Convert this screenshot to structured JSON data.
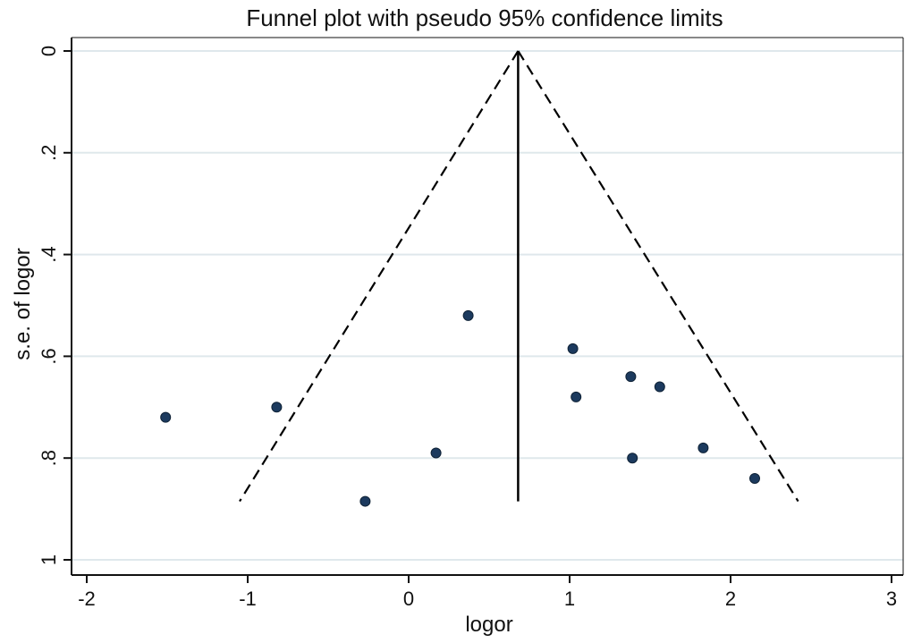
{
  "chart_data": {
    "type": "scatter",
    "title": "Funnel plot with pseudo 95% confidence limits",
    "xlabel": "logor",
    "ylabel": "s.e. of logor",
    "xlim": [
      -2,
      3
    ],
    "ylim": [
      0,
      1
    ],
    "y_reversed": true,
    "grid": true,
    "x_ticks": [
      -2,
      -1,
      0,
      1,
      2,
      3
    ],
    "x_tick_labels": [
      "-2",
      "-1",
      "0",
      "1",
      "2",
      "3"
    ],
    "y_ticks": [
      0,
      0.2,
      0.4,
      0.6,
      0.8,
      1
    ],
    "y_tick_labels": [
      "0",
      ".2",
      ".4",
      ".6",
      ".8",
      "1"
    ],
    "pooled_estimate": 0.68,
    "pooled_line_se_range": [
      0,
      0.885
    ],
    "confidence_limits": {
      "style": "dashed",
      "se_max": 0.885,
      "apex": [
        0.68,
        0
      ],
      "lower_end": [
        -1.05,
        0.885
      ],
      "upper_end": [
        2.42,
        0.885
      ]
    },
    "points": [
      {
        "x": -1.51,
        "y": 0.72
      },
      {
        "x": -0.82,
        "y": 0.7
      },
      {
        "x": 0.37,
        "y": 0.52
      },
      {
        "x": 1.02,
        "y": 0.585
      },
      {
        "x": 1.38,
        "y": 0.64
      },
      {
        "x": 1.56,
        "y": 0.66
      },
      {
        "x": 1.04,
        "y": 0.68
      },
      {
        "x": 0.17,
        "y": 0.79
      },
      {
        "x": 1.83,
        "y": 0.78
      },
      {
        "x": 1.39,
        "y": 0.8
      },
      {
        "x": 2.15,
        "y": 0.84
      },
      {
        "x": -0.27,
        "y": 0.885
      }
    ],
    "colors": {
      "point": "#1c3a5e",
      "grid": "#dfe8ec",
      "axis": "#111111",
      "line": "#000000"
    }
  }
}
